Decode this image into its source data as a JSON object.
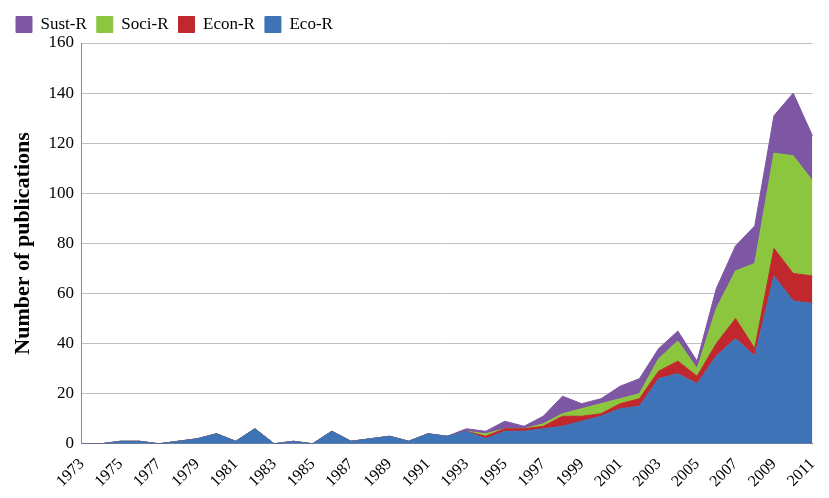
{
  "chart_data": {
    "type": "area",
    "y_label": "Number of publications",
    "categories": [
      1973,
      null,
      1975,
      null,
      1977,
      null,
      1979,
      null,
      1981,
      null,
      1983,
      null,
      1985,
      null,
      1987,
      null,
      1989,
      null,
      1991,
      null,
      1993,
      null,
      1995,
      null,
      1997,
      null,
      1999,
      null,
      2001,
      null,
      2003,
      null,
      2005,
      null,
      2007,
      null,
      2009,
      null,
      2011
    ],
    "series": [
      {
        "name": "Eco-R",
        "color": "#3f73b8",
        "values": [
          0,
          0,
          1,
          1,
          0,
          1,
          2,
          4,
          1,
          6,
          0,
          1,
          0,
          5,
          1,
          2,
          3,
          1,
          4,
          3,
          5,
          2,
          5,
          5,
          6,
          7,
          9,
          11,
          14,
          15,
          26,
          28,
          24,
          35,
          42,
          35,
          67,
          57,
          56
        ]
      },
      {
        "name": "Econ-R",
        "color": "#c0282d",
        "values": [
          0,
          0,
          0,
          0,
          0,
          0,
          0,
          0,
          0,
          0,
          0,
          0,
          0,
          0,
          0,
          0,
          0,
          0,
          0,
          0,
          0,
          1,
          1,
          1,
          1,
          4,
          2,
          1,
          2,
          3,
          3,
          5,
          3,
          5,
          8,
          3,
          11,
          11,
          11
        ]
      },
      {
        "name": "Soci-R",
        "color": "#8cc63f",
        "values": [
          0,
          0,
          0,
          0,
          0,
          0,
          0,
          0,
          0,
          0,
          0,
          0,
          0,
          0,
          0,
          0,
          0,
          0,
          0,
          0,
          0,
          1,
          0,
          0,
          1,
          1,
          3,
          4,
          2,
          2,
          5,
          8,
          3,
          14,
          19,
          34,
          38,
          47,
          38
        ]
      },
      {
        "name": "Sust-R",
        "color": "#7e57a4",
        "values": [
          0,
          0,
          0,
          0,
          0,
          0,
          0,
          0,
          0,
          0,
          0,
          0,
          0,
          0,
          0,
          0,
          0,
          0,
          0,
          0,
          1,
          1,
          3,
          1,
          3,
          7,
          2,
          2,
          5,
          6,
          4,
          4,
          3,
          8,
          10,
          15,
          15,
          25,
          18
        ]
      }
    ],
    "ylim": [
      0,
      160
    ],
    "yticks": [
      0,
      20,
      40,
      60,
      80,
      100,
      120,
      140,
      160
    ],
    "grid": true,
    "stacked": true,
    "legend": "upper left"
  }
}
